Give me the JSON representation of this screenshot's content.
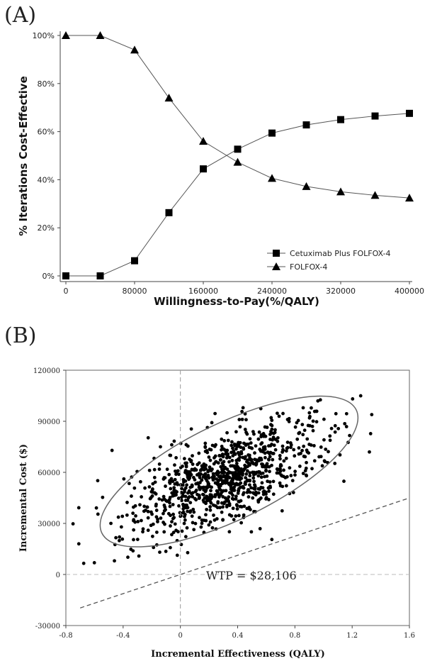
{
  "panels": {
    "a_label": "(A)",
    "b_label": "(B)"
  },
  "chart_data": [
    {
      "type": "line",
      "xlabel": "Willingness-to-Pay(%/QALY)",
      "ylabel": "% Iterations Cost-Effective",
      "xlim": [
        0,
        400000
      ],
      "ylim": [
        0,
        100
      ],
      "x_ticks": [
        0,
        80000,
        160000,
        240000,
        320000,
        400000
      ],
      "x_tick_labels": [
        "0",
        "80000",
        "160000",
        "240000",
        "320000",
        "400000"
      ],
      "y_ticks": [
        0,
        20,
        40,
        60,
        80,
        100
      ],
      "y_tick_labels": [
        "0%",
        "20%",
        "40%",
        "60%",
        "80%",
        "100%"
      ],
      "legend_position": "bottom-right",
      "x": [
        0,
        40000,
        80000,
        120000,
        160000,
        200000,
        240000,
        280000,
        320000,
        360000,
        400000
      ],
      "series": [
        {
          "name": "Cetuximab Plus FOLFOX-4",
          "marker": "square",
          "values": [
            0,
            0,
            6.3,
            26.3,
            44.5,
            52.7,
            59.4,
            62.8,
            65.0,
            66.5,
            67.6
          ]
        },
        {
          "name": "FOLFOX-4",
          "marker": "triangle",
          "values": [
            100,
            100,
            94,
            74,
            56,
            47.3,
            40.6,
            37.2,
            35.0,
            33.5,
            32.4
          ]
        }
      ],
      "grid": false
    },
    {
      "type": "scatter",
      "xlabel": "Incremental Effectiveness (QALY)",
      "ylabel": "Incremental Cost ($)",
      "xlim": [
        -0.8,
        1.6
      ],
      "ylim": [
        -30000,
        120000
      ],
      "x_ticks": [
        -0.8,
        -0.4,
        0,
        0.4,
        0.8,
        1.2,
        1.6
      ],
      "x_tick_labels": [
        "-0.8",
        "-0.4",
        "0",
        "0.4",
        "0.8",
        "1.2",
        "1.6"
      ],
      "y_ticks": [
        -30000,
        0,
        30000,
        60000,
        90000,
        120000
      ],
      "y_tick_labels": [
        "-30000",
        "0",
        "30000",
        "60000",
        "90000",
        "120000"
      ],
      "annotation": "WTP = $28,106",
      "wtp_slope": 28106,
      "point_count": 1000,
      "point_cloud": {
        "center_x": 0.32,
        "center_y": 57000,
        "sd_x": 0.34,
        "sd_y": 17000,
        "correlation": 0.65
      },
      "confidence_ellipse": {
        "center_x": 0.34,
        "center_y": 60500,
        "x_from": -0.61,
        "x_to": 1.06
      },
      "grid": false
    }
  ]
}
